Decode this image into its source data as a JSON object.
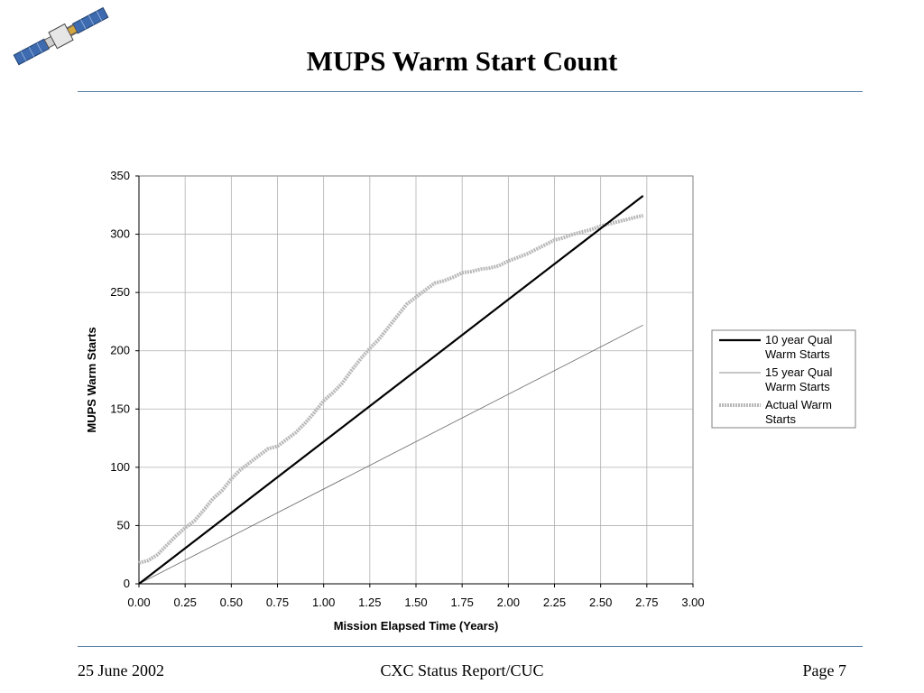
{
  "slide": {
    "title": "MUPS Warm Start Count",
    "footer_left": "25 June 2002",
    "footer_center": "CXC Status Report/CUC",
    "footer_right": "Page 7"
  },
  "colors": {
    "rule": "#5a7fa6",
    "qual10": "#000000",
    "qual15": "#666666",
    "actual": "#b8b8b8",
    "grid": "#b0b0b0"
  },
  "chart_data": {
    "type": "line",
    "xlabel": "Mission Elapsed Time (Years)",
    "ylabel": "MUPS Warm Starts",
    "xlim": [
      0,
      3
    ],
    "ylim": [
      0,
      350
    ],
    "xticks": [
      "0.00",
      "0.25",
      "0.50",
      "0.75",
      "1.00",
      "1.25",
      "1.50",
      "1.75",
      "2.00",
      "2.25",
      "2.50",
      "2.75",
      "3.00"
    ],
    "yticks": [
      "0",
      "50",
      "100",
      "150",
      "200",
      "250",
      "300",
      "350"
    ],
    "grid": true,
    "legend_position": "right",
    "series": [
      {
        "name": "10 year Qual Warm Starts",
        "style": "thick-solid",
        "x": [
          0,
          2.73
        ],
        "y": [
          0,
          333
        ]
      },
      {
        "name": "15 year Qual Warm Starts",
        "style": "thin-solid",
        "x": [
          0,
          2.73
        ],
        "y": [
          0,
          222
        ]
      },
      {
        "name": "Actual Warm Starts",
        "style": "thick-light-gray",
        "x": [
          0.0,
          0.05,
          0.1,
          0.15,
          0.2,
          0.25,
          0.3,
          0.35,
          0.4,
          0.45,
          0.5,
          0.55,
          0.6,
          0.65,
          0.7,
          0.75,
          0.8,
          0.85,
          0.9,
          0.95,
          1.0,
          1.05,
          1.1,
          1.15,
          1.2,
          1.25,
          1.3,
          1.35,
          1.4,
          1.45,
          1.5,
          1.55,
          1.6,
          1.65,
          1.7,
          1.75,
          1.8,
          1.85,
          1.9,
          1.95,
          2.0,
          2.05,
          2.1,
          2.15,
          2.2,
          2.25,
          2.3,
          2.35,
          2.4,
          2.45,
          2.5,
          2.55,
          2.6,
          2.65,
          2.7,
          2.73
        ],
        "y": [
          18,
          20,
          25,
          33,
          41,
          48,
          54,
          63,
          73,
          80,
          90,
          98,
          104,
          110,
          116,
          118,
          124,
          130,
          138,
          147,
          157,
          164,
          172,
          183,
          193,
          202,
          210,
          220,
          230,
          240,
          246,
          252,
          258,
          260,
          263,
          267,
          268,
          270,
          271,
          273,
          277,
          280,
          283,
          287,
          291,
          295,
          297,
          300,
          302,
          304,
          307,
          309,
          311,
          313,
          315,
          316
        ]
      }
    ]
  }
}
